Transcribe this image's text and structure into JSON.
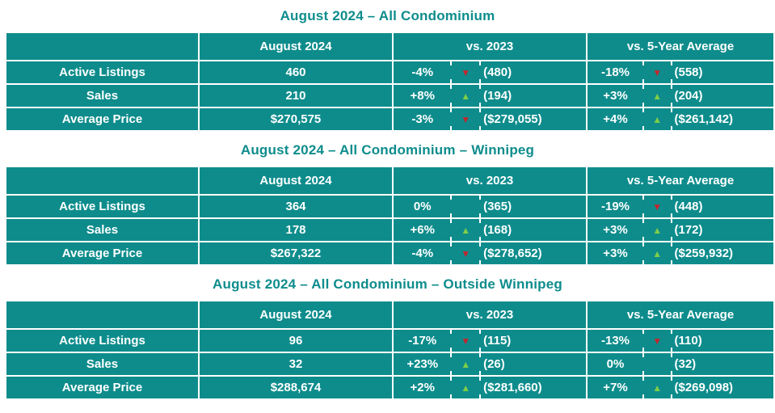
{
  "accent_colors": {
    "teal": "#0e8c8c",
    "arrow_red": "#c0272d",
    "arrow_green": "#7fce46",
    "table_text": "#ffffff"
  },
  "icons": {
    "down_arrow": "▼",
    "up_arrow": "▲"
  },
  "chart_data": [
    {
      "type": "table",
      "title": "August 2024 – All Condominium",
      "columns": [
        "",
        "August 2024",
        "vs. 2023",
        "vs. 5-Year Average"
      ],
      "rows": [
        {
          "label": "Active Listings",
          "current": "460",
          "vs_2023": {
            "pct": "-4%",
            "dir": "down",
            "ref": "(480)"
          },
          "vs_5yr": {
            "pct": "-18%",
            "dir": "down",
            "ref": "(558)"
          }
        },
        {
          "label": "Sales",
          "current": "210",
          "vs_2023": {
            "pct": "+8%",
            "dir": "up",
            "ref": "(194)"
          },
          "vs_5yr": {
            "pct": "+3%",
            "dir": "up",
            "ref": "(204)"
          }
        },
        {
          "label": "Average Price",
          "current": "$270,575",
          "vs_2023": {
            "pct": "-3%",
            "dir": "down",
            "ref": "($279,055)"
          },
          "vs_5yr": {
            "pct": "+4%",
            "dir": "up",
            "ref": "($261,142)"
          }
        }
      ]
    },
    {
      "type": "table",
      "title": "August 2024 – All Condominium – Winnipeg",
      "columns": [
        "",
        "August 2024",
        "vs. 2023",
        "vs. 5-Year Average"
      ],
      "rows": [
        {
          "label": "Active Listings",
          "current": "364",
          "vs_2023": {
            "pct": "0%",
            "dir": "none",
            "ref": "(365)"
          },
          "vs_5yr": {
            "pct": "-19%",
            "dir": "down",
            "ref": "(448)"
          }
        },
        {
          "label": "Sales",
          "current": "178",
          "vs_2023": {
            "pct": "+6%",
            "dir": "up",
            "ref": "(168)"
          },
          "vs_5yr": {
            "pct": "+3%",
            "dir": "up",
            "ref": "(172)"
          }
        },
        {
          "label": "Average Price",
          "current": "$267,322",
          "vs_2023": {
            "pct": "-4%",
            "dir": "down",
            "ref": "($278,652)"
          },
          "vs_5yr": {
            "pct": "+3%",
            "dir": "up",
            "ref": "($259,932)"
          }
        }
      ]
    },
    {
      "type": "table",
      "title": "August 2024 – All Condominium – Outside Winnipeg",
      "columns": [
        "",
        "August 2024",
        "vs. 2023",
        "vs. 5-Year Average"
      ],
      "rows": [
        {
          "label": "Active Listings",
          "current": "96",
          "vs_2023": {
            "pct": "-17%",
            "dir": "down",
            "ref": "(115)"
          },
          "vs_5yr": {
            "pct": "-13%",
            "dir": "down",
            "ref": "(110)"
          }
        },
        {
          "label": "Sales",
          "current": "32",
          "vs_2023": {
            "pct": "+23%",
            "dir": "up",
            "ref": "(26)"
          },
          "vs_5yr": {
            "pct": "0%",
            "dir": "none",
            "ref": "(32)"
          }
        },
        {
          "label": "Average Price",
          "current": "$288,674",
          "vs_2023": {
            "pct": "+2%",
            "dir": "up",
            "ref": "($281,660)"
          },
          "vs_5yr": {
            "pct": "+7%",
            "dir": "up",
            "ref": "($269,098)"
          }
        }
      ]
    }
  ]
}
